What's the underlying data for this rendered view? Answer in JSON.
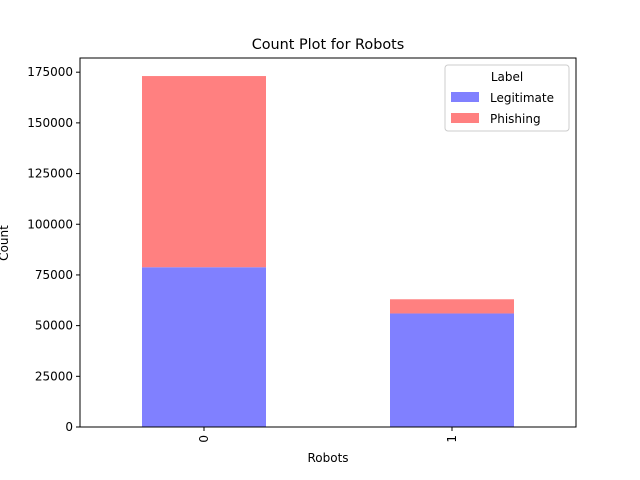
{
  "chart_data": {
    "type": "bar",
    "stacked": true,
    "title": "Count Plot for Robots",
    "xlabel": "Robots",
    "ylabel": "Count",
    "categories": [
      "0",
      "1"
    ],
    "series": [
      {
        "name": "Legitimate",
        "values": [
          78800,
          56000
        ],
        "color": "#8080ff"
      },
      {
        "name": "Phishing",
        "values": [
          94300,
          7000
        ],
        "color": "#ff8080"
      }
    ],
    "ylim": [
      0,
      182000
    ],
    "yticks": [
      0,
      25000,
      50000,
      75000,
      100000,
      125000,
      150000,
      175000
    ],
    "ytick_labels": [
      "0",
      "25000",
      "50000",
      "75000",
      "100000",
      "125000",
      "150000",
      "175000"
    ],
    "xtick_rotation": 90,
    "legend": {
      "title": "Label",
      "placement": "top-right"
    },
    "grid": false
  }
}
